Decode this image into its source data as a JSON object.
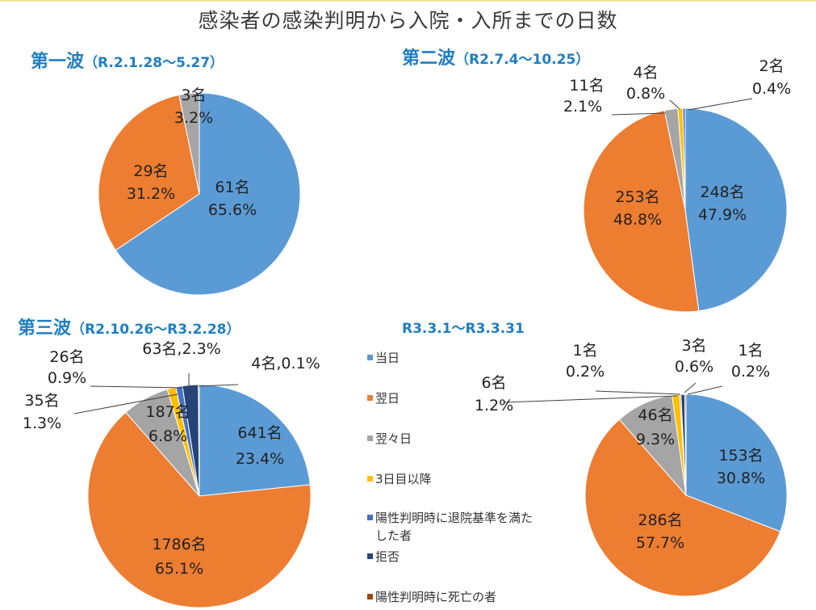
{
  "title": "感染者の感染判明から入院・入所までの日数",
  "legend": [
    {
      "label": "当日",
      "color": "#5b9bd5"
    },
    {
      "label": "翌日",
      "color": "#ed7d31"
    },
    {
      "label": "翌々日",
      "color": "#a5a5a5"
    },
    {
      "label": "3日目以降",
      "color": "#ffc000"
    },
    {
      "label": "陽性判明時に退院基準を満た",
      "label2": "した者",
      "color": "#4472c4"
    },
    {
      "label": "拒否",
      "color": "#264478"
    },
    {
      "label": "陽性判明時に死亡の者",
      "color": "#9e480e"
    }
  ],
  "chart_data": [
    {
      "type": "pie",
      "title": "第一波",
      "subtitle": "（R.2.1.28～5.27）",
      "slices": [
        {
          "category": "当日",
          "count": 61,
          "label_count": "61名",
          "label_pct": "65.6%"
        },
        {
          "category": "翌日",
          "count": 29,
          "label_count": "29名",
          "label_pct": "31.2%"
        },
        {
          "category": "翌々日",
          "count": 3,
          "label_count": "3名",
          "label_pct": "3.2%"
        }
      ]
    },
    {
      "type": "pie",
      "title": "第二波",
      "subtitle": "（R2.7.4～10.25）",
      "slices": [
        {
          "category": "当日",
          "count": 248,
          "label_count": "248名",
          "label_pct": "47.9%"
        },
        {
          "category": "翌日",
          "count": 253,
          "label_count": "253名",
          "label_pct": "48.8%"
        },
        {
          "category": "翌々日",
          "count": 11,
          "label_count": "11名",
          "label_pct": "2.1%"
        },
        {
          "category": "3日目以降",
          "count": 4,
          "label_count": "4名",
          "label_pct": "0.8%"
        },
        {
          "category": "陽性判明時に退院基準を満たした者",
          "count": 2,
          "label_count": "2名",
          "label_pct": "0.4%"
        }
      ]
    },
    {
      "type": "pie",
      "title": "第三波",
      "subtitle": "（R2.10.26～R3.2.28）",
      "slices": [
        {
          "category": "当日",
          "count": 641,
          "label_count": "641名",
          "label_pct": "23.4%"
        },
        {
          "category": "翌日",
          "count": 1786,
          "label_count": "1786名",
          "label_pct": "65.1%"
        },
        {
          "category": "翌々日",
          "count": 187,
          "label_count": "187名",
          "label_pct": "6.8%"
        },
        {
          "category": "3日目以降",
          "count": 35,
          "label_count": "35名",
          "label_pct": "1.3%"
        },
        {
          "category": "陽性判明時に退院基準を満たした者",
          "count": 26,
          "label_count": "26名",
          "label_pct": "0.9%"
        },
        {
          "category": "拒否",
          "count": 63,
          "label_text": "63名,2.3%"
        },
        {
          "category": "陽性判明時に死亡の者",
          "count": 4,
          "label_text": "4名,0.1%"
        }
      ]
    },
    {
      "type": "pie",
      "title": "",
      "subtitle": "R3.3.1～R3.3.31",
      "slices": [
        {
          "category": "当日",
          "count": 153,
          "label_count": "153名",
          "label_pct": "30.8%"
        },
        {
          "category": "翌日",
          "count": 286,
          "label_count": "286名",
          "label_pct": "57.7%"
        },
        {
          "category": "翌々日",
          "count": 46,
          "label_count": "46名",
          "label_pct": "9.3%"
        },
        {
          "category": "3日目以降",
          "count": 6,
          "label_count": "6名",
          "label_pct": "1.2%"
        },
        {
          "category": "陽性判明時に退院基準を満たした者",
          "count": 1,
          "label_count": "1名",
          "label_pct": "0.2%"
        },
        {
          "category": "拒否",
          "count": 3,
          "label_count": "3名",
          "label_pct": "0.6%"
        },
        {
          "category": "陽性判明時に死亡の者",
          "count": 1,
          "label_count": "1名",
          "label_pct": "0.2%"
        }
      ]
    }
  ]
}
